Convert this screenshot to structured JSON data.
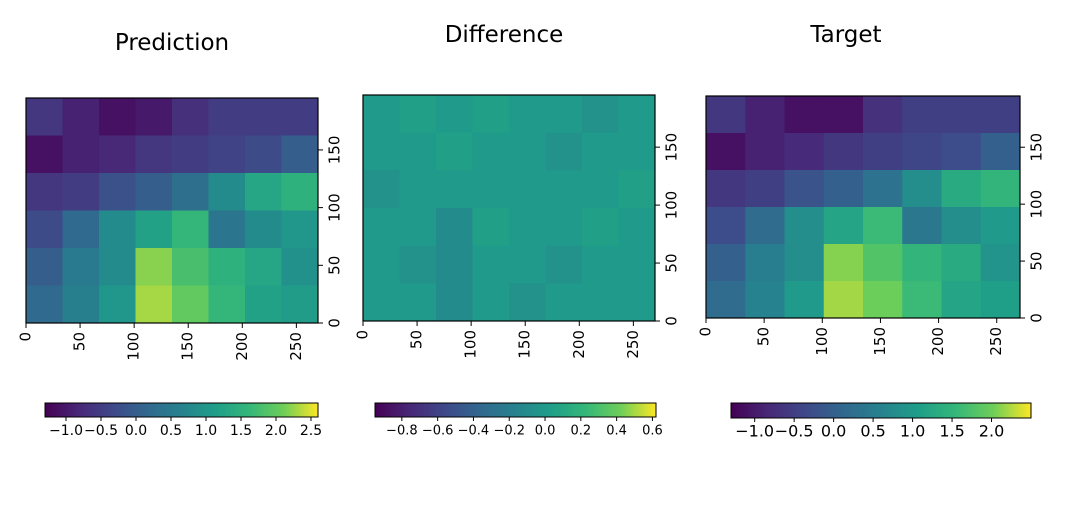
{
  "chart_data": [
    {
      "type": "heatmap",
      "title": "Prediction",
      "colormap": "viridis",
      "xlim": [
        0,
        270
      ],
      "xticks": [
        0,
        50,
        100,
        150,
        200,
        250
      ],
      "ylim": [
        0,
        195
      ],
      "yticks": [
        0,
        50,
        100,
        150
      ],
      "z": [
        [
          -0.6,
          -0.9,
          -1.1,
          -1.0,
          -0.7,
          -0.5,
          -0.5,
          -0.5
        ],
        [
          -1.1,
          -0.9,
          -0.8,
          -0.6,
          -0.5,
          -0.4,
          -0.3,
          0.0
        ],
        [
          -0.6,
          -0.5,
          -0.2,
          0.0,
          0.3,
          0.8,
          1.3,
          1.5
        ],
        [
          -0.3,
          0.2,
          0.8,
          1.2,
          1.6,
          0.4,
          0.8,
          1.0
        ],
        [
          0.0,
          0.5,
          0.8,
          2.2,
          1.8,
          1.5,
          1.3,
          0.9
        ],
        [
          0.2,
          0.6,
          1.0,
          2.3,
          2.0,
          1.6,
          1.2,
          1.1
        ]
      ],
      "clim": [
        -1.3,
        2.6
      ],
      "cticks": [
        {
          "value": -1.0,
          "label": "−1.0"
        },
        {
          "value": -0.5,
          "label": "−0.5"
        },
        {
          "value": 0,
          "label": "0.0"
        },
        0.5,
        {
          "value": 1.0,
          "label": "1.0"
        },
        1.5,
        {
          "value": 2.0,
          "label": "2.0"
        },
        2.5
      ]
    },
    {
      "type": "heatmap",
      "title": "Difference",
      "colormap": "viridis",
      "xlim": [
        0,
        270
      ],
      "xticks": [
        0,
        50,
        100,
        150,
        200,
        250
      ],
      "ylim": [
        0,
        195
      ],
      "yticks": [
        0,
        50,
        100,
        150
      ],
      "z": [
        [
          0.0,
          0.05,
          0.0,
          0.05,
          0.0,
          0.0,
          -0.05,
          0.0
        ],
        [
          0.0,
          0.0,
          0.05,
          0.0,
          0.0,
          -0.05,
          0.0,
          0.0
        ],
        [
          -0.05,
          0.0,
          0.0,
          0.0,
          0.0,
          0.0,
          0.0,
          0.05
        ],
        [
          0.0,
          0.0,
          -0.1,
          0.05,
          0.0,
          0.0,
          0.05,
          0.0
        ],
        [
          0.0,
          -0.05,
          -0.1,
          0.0,
          0.0,
          -0.05,
          0.0,
          0.0
        ],
        [
          0.0,
          0.0,
          -0.1,
          0.0,
          -0.05,
          0.0,
          0.0,
          0.0
        ]
      ],
      "clim": [
        -0.95,
        0.62
      ],
      "cticks": [
        {
          "value": -0.8,
          "label": "−0.8"
        },
        {
          "value": -0.6,
          "label": "−0.6"
        },
        {
          "value": -0.4,
          "label": "−0.4"
        },
        {
          "value": -0.2,
          "label": "−0.2"
        },
        {
          "value": 0,
          "label": "0.0"
        },
        0.2,
        0.4,
        0.6
      ]
    },
    {
      "type": "heatmap",
      "title": "Target",
      "colormap": "viridis",
      "xlim": [
        0,
        270
      ],
      "xticks": [
        0,
        50,
        100,
        150,
        200,
        250
      ],
      "ylim": [
        0,
        195
      ],
      "yticks": [
        0,
        50,
        100,
        150
      ],
      "z": [
        [
          -0.6,
          -0.9,
          -1.1,
          -1.1,
          -0.7,
          -0.5,
          -0.5,
          -0.5
        ],
        [
          -1.1,
          -0.9,
          -0.8,
          -0.6,
          -0.5,
          -0.4,
          -0.3,
          0.0
        ],
        [
          -0.6,
          -0.5,
          -0.2,
          0.0,
          0.3,
          0.8,
          1.3,
          1.5
        ],
        [
          -0.3,
          0.2,
          0.8,
          1.2,
          1.6,
          0.4,
          0.8,
          1.0
        ],
        [
          0.0,
          0.5,
          0.8,
          2.1,
          1.8,
          1.5,
          1.3,
          0.9
        ],
        [
          0.2,
          0.6,
          1.0,
          2.2,
          2.0,
          1.6,
          1.2,
          1.1
        ]
      ],
      "clim": [
        -1.3,
        2.5
      ],
      "cticks": [
        {
          "value": -1.0,
          "label": "−1.0"
        },
        {
          "value": -0.5,
          "label": "−0.5"
        },
        {
          "value": 0,
          "label": "0.0"
        },
        0.5,
        {
          "value": 1.0,
          "label": "1.0"
        },
        1.5,
        {
          "value": 2.0,
          "label": "2.0"
        }
      ]
    }
  ]
}
